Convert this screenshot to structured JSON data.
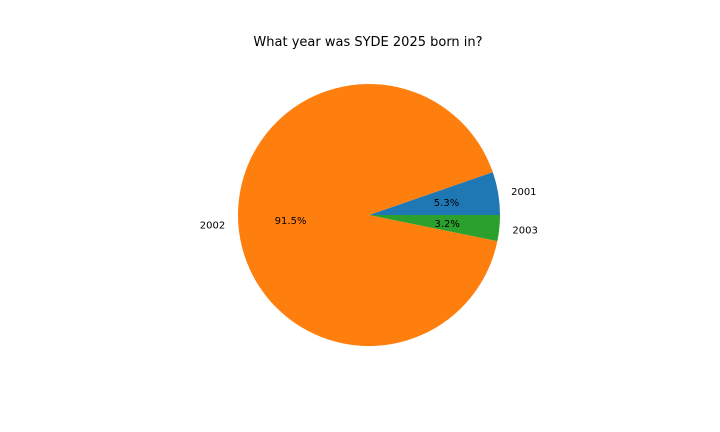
{
  "chart_data": {
    "type": "pie",
    "title": "What year was SYDE 2025 born in?",
    "slices": [
      {
        "label": "2001",
        "value": 5.3,
        "pct_label": "5.3%",
        "color": "#1f77b4"
      },
      {
        "label": "2002",
        "value": 91.5,
        "pct_label": "91.5%",
        "color": "#ff7f0e"
      },
      {
        "label": "2003",
        "value": 3.2,
        "pct_label": "3.2%",
        "color": "#2ca02c"
      }
    ],
    "start_angle_deg": 0,
    "direction": "counterclockwise"
  }
}
